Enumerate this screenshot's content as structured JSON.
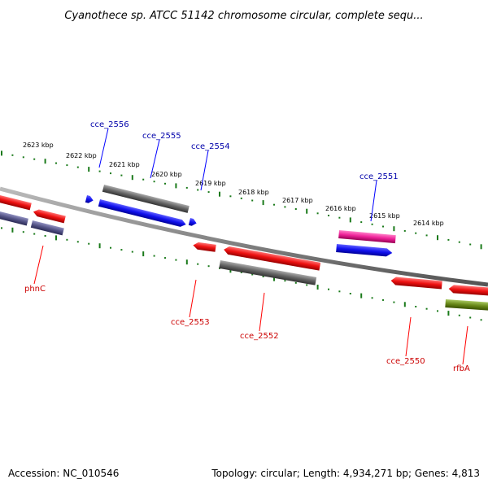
{
  "title": "Cyanothece sp. ATCC 51142 chromosome circular, complete sequ...",
  "footer": {
    "accession": "Accession: NC_010546",
    "summary": "Topology: circular; Length: 4,934,271 bp; Genes: 4,813"
  },
  "ruler_labels": [
    "2623 kbp",
    "2622 kbp",
    "2621 kbp",
    "2620 kbp",
    "2619 kbp",
    "2618 kbp",
    "2617 kbp",
    "2616 kbp",
    "2615 kbp",
    "2614 kbp"
  ],
  "top_gene_labels": [
    "cce_2556",
    "cce_2555",
    "cce_2554",
    "cce_2551"
  ],
  "bottom_gene_labels": [
    "phnC",
    "cce_2553",
    "cce_2552",
    "cce_2550",
    "rfbA"
  ],
  "colors": {
    "red": "#ee1111",
    "blue": "#1111ee",
    "gray": "#666666",
    "slate": "#555588",
    "pink": "#ee2299",
    "olive": "#6a8a1a",
    "tick": "#1a7a1a",
    "backbone": "#888888"
  }
}
